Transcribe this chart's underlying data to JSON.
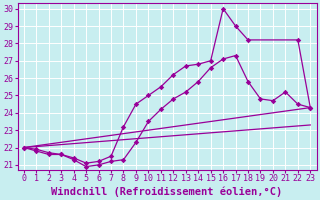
{
  "background_color": "#c8eef0",
  "grid_color": "#aaaaaa",
  "line_color": "#990099",
  "xlabel": "Windchill (Refroidissement éolien,°C)",
  "xlim": [
    -0.5,
    23.5
  ],
  "ylim": [
    20.7,
    30.3
  ],
  "yticks": [
    21,
    22,
    23,
    24,
    25,
    26,
    27,
    28,
    29,
    30
  ],
  "xticks": [
    0,
    1,
    2,
    3,
    4,
    5,
    6,
    7,
    8,
    9,
    10,
    11,
    12,
    13,
    14,
    15,
    16,
    17,
    18,
    19,
    20,
    21,
    22,
    23
  ],
  "line1_x": [
    0,
    1,
    2,
    3,
    4,
    5,
    6,
    7,
    8,
    9,
    10,
    11,
    12,
    13,
    14,
    15,
    16,
    17,
    18,
    22,
    23
  ],
  "line1_y": [
    22.0,
    21.9,
    21.7,
    21.6,
    21.4,
    21.1,
    21.2,
    21.5,
    23.2,
    24.5,
    25.0,
    25.5,
    26.2,
    26.7,
    26.8,
    27.0,
    30.0,
    29.0,
    28.2,
    28.2,
    24.3
  ],
  "line2_x": [
    0,
    1,
    2,
    3,
    4,
    5,
    6,
    7,
    8,
    9,
    10,
    11,
    12,
    13,
    14,
    15,
    16,
    17,
    18,
    19,
    20,
    21,
    22,
    23
  ],
  "line2_y": [
    22.0,
    21.8,
    21.6,
    21.6,
    21.3,
    20.9,
    21.0,
    21.2,
    21.3,
    22.3,
    23.5,
    24.2,
    24.8,
    25.2,
    25.8,
    26.6,
    27.1,
    27.3,
    25.8,
    24.8,
    24.7,
    25.2,
    24.5,
    24.3
  ],
  "line3_x": [
    0,
    23
  ],
  "line3_y": [
    22.0,
    24.3
  ],
  "line4_x": [
    0,
    23
  ],
  "line4_y": [
    22.0,
    23.3
  ],
  "marker_size": 2.8,
  "linewidth": 0.9,
  "xlabel_fontsize": 7.5,
  "tick_fontsize": 6
}
